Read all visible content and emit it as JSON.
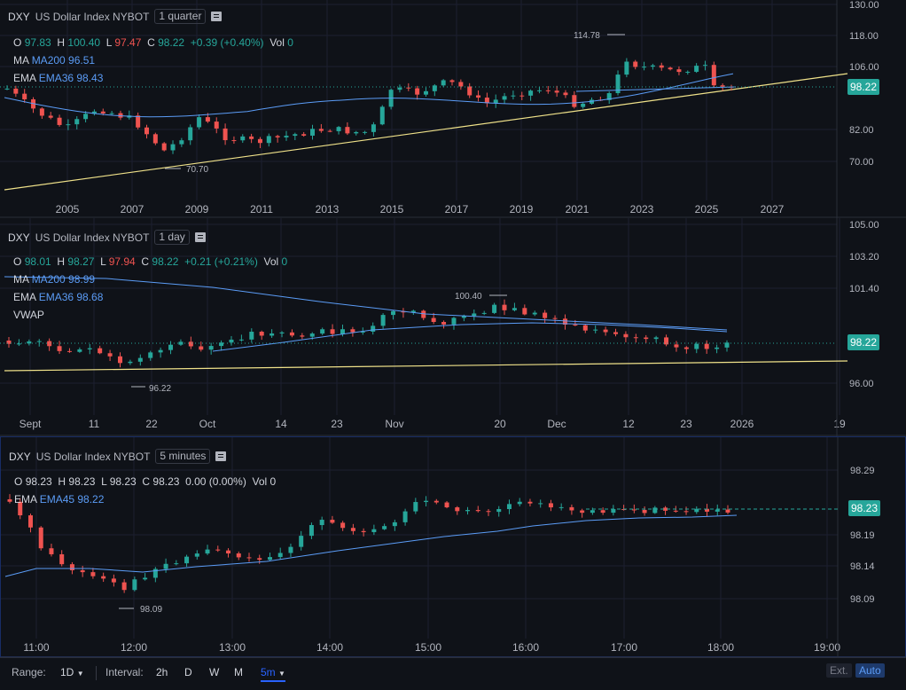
{
  "panels": [
    {
      "symbol": "DXY",
      "name": "US Dollar Index NYBOT",
      "timeframe": "1 quarter",
      "ohlc": {
        "o_label": "O",
        "o": "97.83",
        "h_label": "H",
        "h": "100.40",
        "l_label": "L",
        "l": "97.47",
        "c_label": "C",
        "c": "98.22",
        "change": "+0.39 (+0.40%)",
        "vol_label": "Vol",
        "vol": "0"
      },
      "indicators": [
        {
          "label": "MA",
          "value": "MA200 96.51"
        },
        {
          "label": "EMA",
          "value": "EMA36 98.43"
        }
      ],
      "y_ticks": [
        "130.00",
        "118.00",
        "106.00",
        "82.00",
        "70.00"
      ],
      "x_ticks": [
        "2005",
        "2007",
        "2009",
        "2011",
        "2013",
        "2015",
        "2017",
        "2019",
        "2021",
        "2023",
        "2025",
        "2027"
      ],
      "price_tag": "98.22",
      "hi_marker": "114.78",
      "lo_marker": "70.70"
    },
    {
      "symbol": "DXY",
      "name": "US Dollar Index NYBOT",
      "timeframe": "1 day",
      "ohlc": {
        "o_label": "O",
        "o": "98.01",
        "h_label": "H",
        "h": "98.27",
        "l_label": "L",
        "l": "97.94",
        "c_label": "C",
        "c": "98.22",
        "change": "+0.21 (+0.21%)",
        "vol_label": "Vol",
        "vol": "0"
      },
      "indicators": [
        {
          "label": "MA",
          "value": "MA200 98.99"
        },
        {
          "label": "EMA",
          "value": "EMA36 98.68"
        },
        {
          "label": "VWAP",
          "value": ""
        }
      ],
      "y_ticks": [
        "105.00",
        "103.20",
        "101.40",
        "96.00"
      ],
      "x_ticks": [
        "Sept",
        "11",
        "22",
        "Oct",
        "14",
        "23",
        "Nov",
        "20",
        "Dec",
        "12",
        "23",
        "2026",
        "19"
      ],
      "price_tag": "98.22",
      "hi_marker": "100.40",
      "lo_marker": "96.22"
    },
    {
      "symbol": "DXY",
      "name": "US Dollar Index NYBOT",
      "timeframe": "5 minutes",
      "ohlc": {
        "o_label": "O",
        "o": "98.23",
        "h_label": "H",
        "h": "98.23",
        "l_label": "L",
        "l": "98.23",
        "c_label": "C",
        "c": "98.23",
        "change": "0.00 (0.00%)",
        "vol_label": "Vol",
        "vol": "0"
      },
      "indicators": [
        {
          "label": "EMA",
          "value": "EMA45 98.22"
        }
      ],
      "y_ticks": [
        "98.29",
        "98.19",
        "98.14",
        "98.09"
      ],
      "x_ticks": [
        "11:00",
        "12:00",
        "13:00",
        "14:00",
        "15:00",
        "16:00",
        "17:00",
        "18:00",
        "19:00"
      ],
      "price_tag": "98.23",
      "lo_marker": "98.09"
    }
  ],
  "bottom": {
    "range_label": "Range:",
    "range_value": "1D",
    "interval_label": "Interval:",
    "intervals": [
      "2h",
      "D",
      "W",
      "M",
      "5m"
    ],
    "ext": "Ext.",
    "auto": "Auto"
  },
  "colors": {
    "up": "#26a69a",
    "down": "#ef5350",
    "ma": "#5b9cf6",
    "trend": "#f0e28a",
    "bg": "#0f1218"
  }
}
